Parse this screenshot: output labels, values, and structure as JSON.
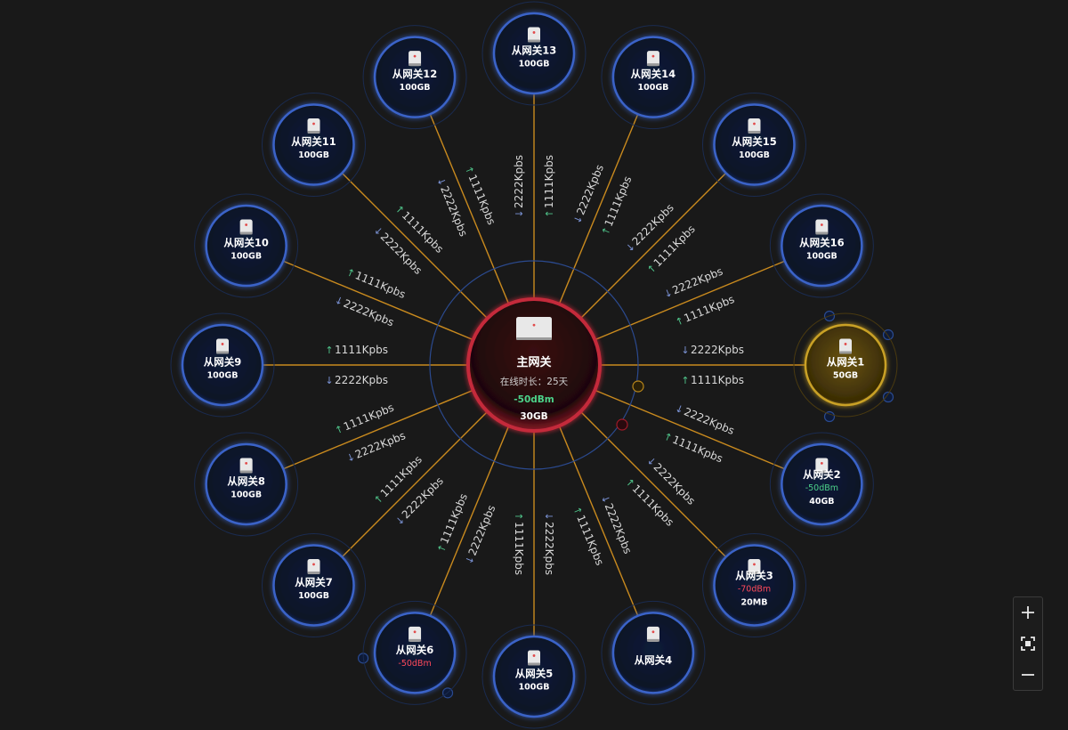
{
  "colors": {
    "link": "#c98a1e",
    "node_ring": "#3a64c8",
    "node_fill": "#0e1730",
    "selected_ring": "#c9a126",
    "main_ring": "#c42a3a",
    "main_fill": "#2a0a0e",
    "good_signal": "#4cd28a",
    "bad_signal": "#ff4a5a"
  },
  "main_gateway": {
    "name": "主网关",
    "uptime": "在线时长：25天",
    "signal": "-50dBm",
    "capacity": "30GB",
    "icon": "router-icon"
  },
  "traffic": {
    "up": "1111Kpbs",
    "down": "2222Kpbs",
    "up_icon": "arrow-up-icon",
    "down_icon": "arrow-down-icon"
  },
  "nodes": [
    {
      "name": "从网关1",
      "capacity": "50GB",
      "signal": "",
      "signal_level": "",
      "selected": true
    },
    {
      "name": "从网关2",
      "capacity": "40GB",
      "signal": "-50dBm",
      "signal_level": "good",
      "selected": false
    },
    {
      "name": "从网关3",
      "capacity": "20MB",
      "signal": "-70dBm",
      "signal_level": "bad",
      "selected": false
    },
    {
      "name": "从网关4",
      "capacity": "",
      "signal": "",
      "signal_level": "",
      "selected": false
    },
    {
      "name": "从网关5",
      "capacity": "100GB",
      "signal": "",
      "signal_level": "",
      "selected": false
    },
    {
      "name": "从网关6",
      "capacity": "",
      "signal": "-50dBm",
      "signal_level": "bad",
      "selected": false
    },
    {
      "name": "从网关7",
      "capacity": "100GB",
      "signal": "",
      "signal_level": "",
      "selected": false
    },
    {
      "name": "从网关8",
      "capacity": "100GB",
      "signal": "",
      "signal_level": "",
      "selected": false
    },
    {
      "name": "从网关9",
      "capacity": "100GB",
      "signal": "",
      "signal_level": "",
      "selected": false
    },
    {
      "name": "从网关10",
      "capacity": "100GB",
      "signal": "",
      "signal_level": "",
      "selected": false
    },
    {
      "name": "从网关11",
      "capacity": "100GB",
      "signal": "",
      "signal_level": "",
      "selected": false
    },
    {
      "name": "从网关12",
      "capacity": "100GB",
      "signal": "",
      "signal_level": "",
      "selected": false
    },
    {
      "name": "从网关13",
      "capacity": "100GB",
      "signal": "",
      "signal_level": "",
      "selected": false
    },
    {
      "name": "从网关14",
      "capacity": "100GB",
      "signal": "",
      "signal_level": "",
      "selected": false
    },
    {
      "name": "从网关15",
      "capacity": "100GB",
      "signal": "",
      "signal_level": "",
      "selected": false
    },
    {
      "name": "从网关16",
      "capacity": "100GB",
      "signal": "",
      "signal_level": "",
      "selected": false
    }
  ],
  "zoom_controls": {
    "zoom_in_icon": "plus-icon",
    "fit_icon": "fit-screen-icon",
    "zoom_out_icon": "minus-icon"
  }
}
